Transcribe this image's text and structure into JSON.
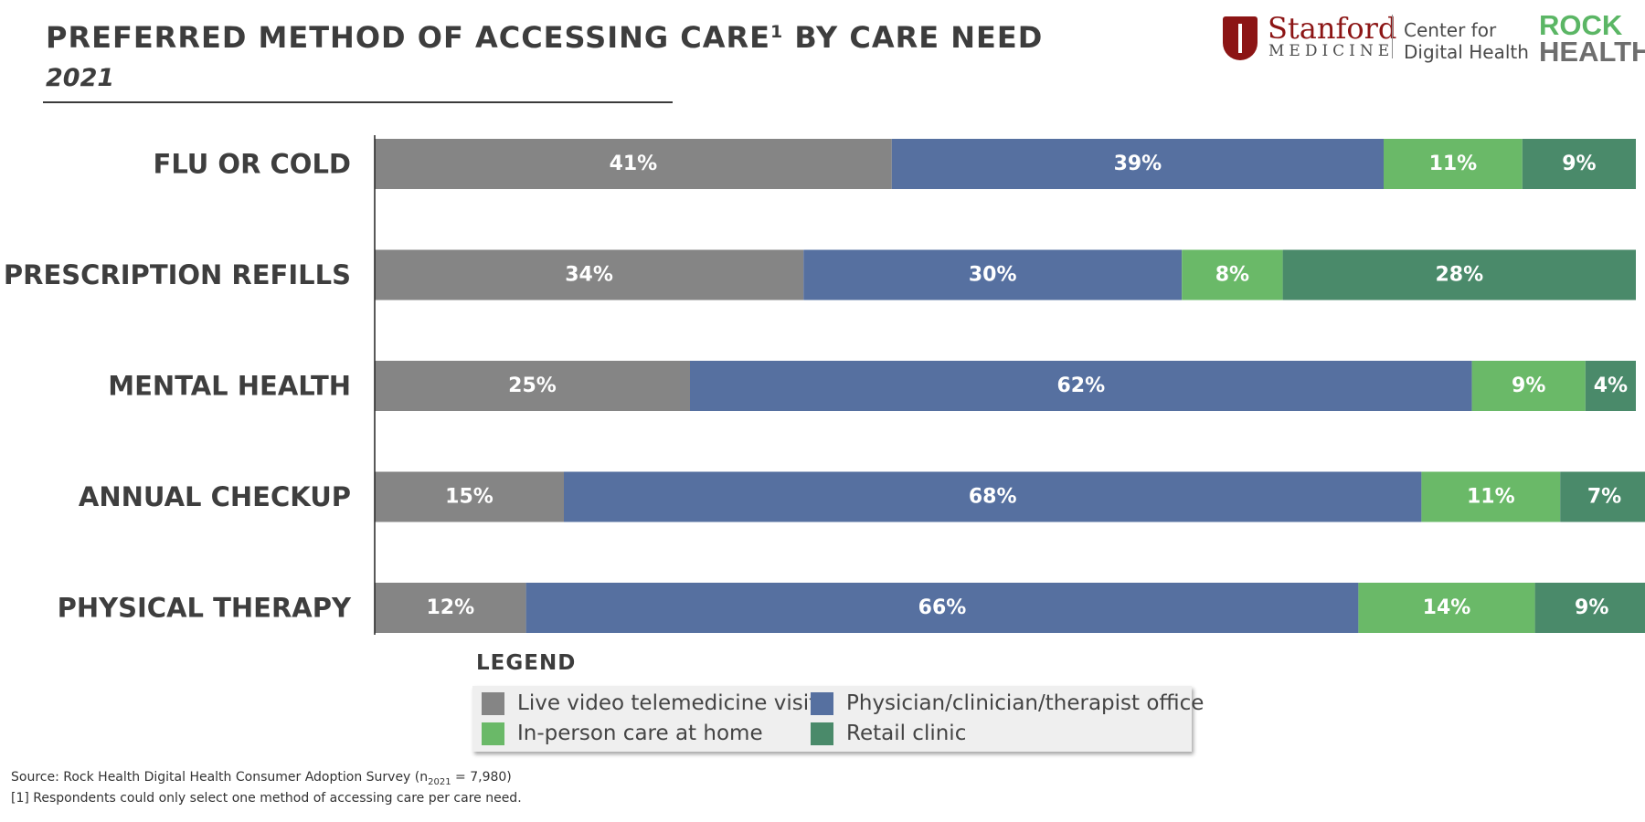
{
  "header": {
    "title_main": "PREFERRED METHOD OF ACCESSING CARE",
    "title_sup": "1",
    "title_tail": " BY CARE NEED",
    "subtitle": "2021"
  },
  "logos": {
    "stanford": "Stanford",
    "medicine": "MEDICINE",
    "center_line1": "Center for",
    "center_line2": "Digital Health",
    "rock": "ROCK",
    "health": "HEALTH"
  },
  "chart_data": {
    "type": "bar",
    "orientation": "horizontal",
    "stacked": true,
    "title": "PREFERRED METHOD OF ACCESSING CARE BY CARE NEED",
    "subtitle": "2021",
    "categories": [
      "FLU OR COLD",
      "PRESCRIPTION REFILLS",
      "MENTAL HEALTH",
      "ANNUAL CHECKUP",
      "PHYSICAL THERAPY"
    ],
    "series": [
      {
        "name": "Live video telemedicine visit",
        "color": "#858585",
        "values": [
          41,
          34,
          25,
          15,
          12
        ],
        "labels": [
          "41%",
          "34%",
          "25%",
          "15%",
          "12%"
        ]
      },
      {
        "name": "Physician/clinician/therapist office",
        "color": "#5670a0",
        "values": [
          39,
          30,
          62,
          68,
          66
        ],
        "labels": [
          "39%",
          "30%",
          "62%",
          "68%",
          "66%"
        ]
      },
      {
        "name": "In-person care at home",
        "color": "#6ab968",
        "values": [
          11,
          8,
          9,
          11,
          14
        ],
        "labels": [
          "11%",
          "8%",
          "9%",
          "11%",
          "14%"
        ]
      },
      {
        "name": "Retail clinic",
        "color": "#4a8a6a",
        "values": [
          9,
          28,
          4,
          7,
          9
        ],
        "labels": [
          "9%",
          "28%",
          "4%",
          "7%",
          "9%"
        ]
      }
    ],
    "xlim": [
      0,
      100
    ],
    "grid": false,
    "legend_title": "LEGEND",
    "legend_position": "bottom"
  },
  "legend": {
    "title": "LEGEND",
    "items": [
      {
        "label": "Live video telemedicine visit",
        "color": "#858585"
      },
      {
        "label": "Physician/clinician/therapist office",
        "color": "#5670a0"
      },
      {
        "label": "In-person care at home",
        "color": "#6ab968"
      },
      {
        "label": "Retail clinic",
        "color": "#4a8a6a"
      }
    ]
  },
  "footer": {
    "source_prefix": "Source: Rock Health Digital Health Consumer Adoption Survey (n",
    "source_sub": "2021",
    "source_suffix": " = 7,980)",
    "footnote": "[1] Respondents could only select one method of accessing care per care need."
  }
}
